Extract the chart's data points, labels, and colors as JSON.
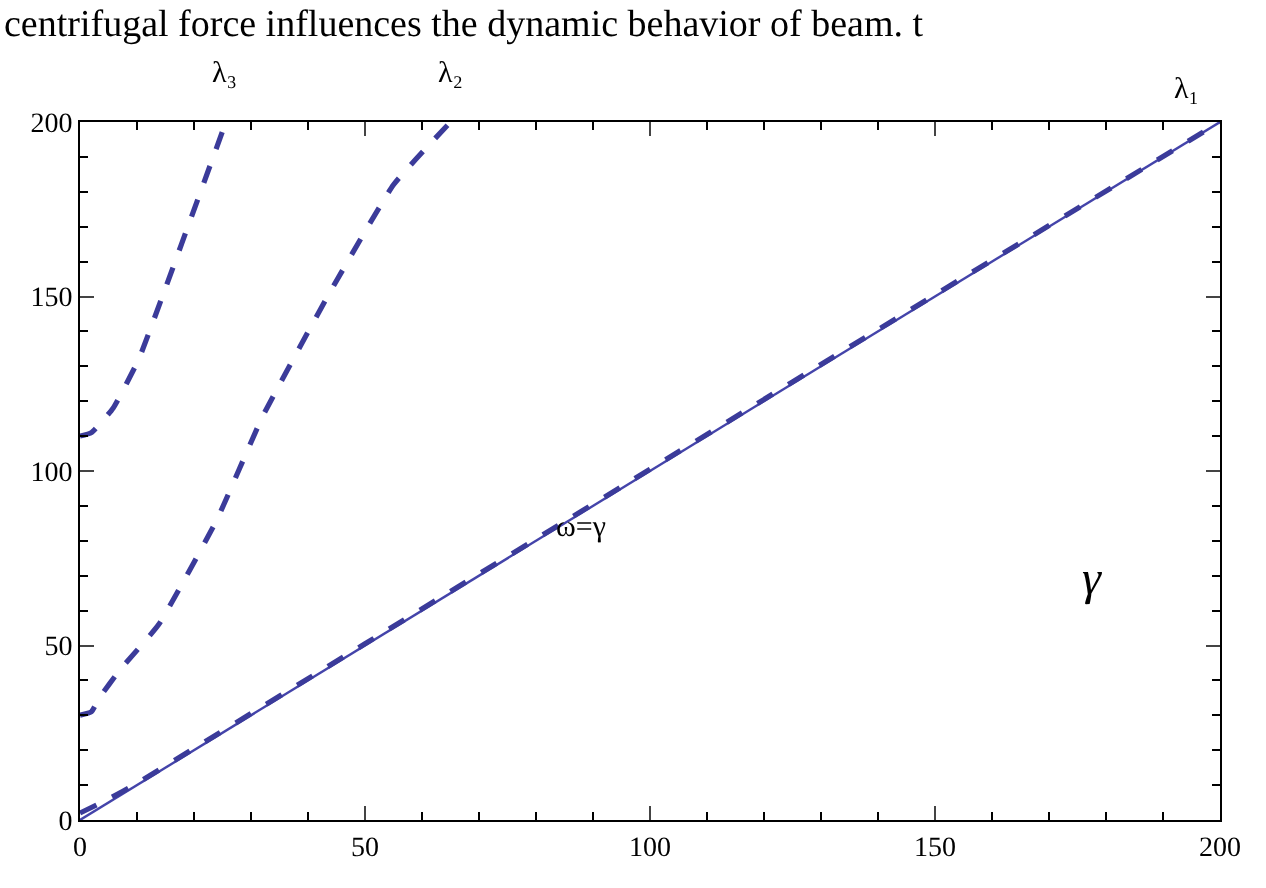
{
  "chart_data": {
    "type": "line",
    "xlabel": "γ",
    "xlim": [
      0,
      200
    ],
    "ylim": [
      0,
      200
    ],
    "xticks": [
      0,
      {
        "value": 10,
        "label": null
      },
      {
        "value": 20,
        "label": null
      },
      {
        "value": 30,
        "label": null
      },
      {
        "value": 40,
        "label": null
      },
      50,
      {
        "value": 60,
        "label": null
      },
      {
        "value": 70,
        "label": null
      },
      {
        "value": 80,
        "label": null
      },
      {
        "value": 90,
        "label": null
      },
      100,
      {
        "value": 110,
        "label": null
      },
      {
        "value": 120,
        "label": null
      },
      {
        "value": 130,
        "label": null
      },
      {
        "value": 140,
        "label": null
      },
      150,
      {
        "value": 160,
        "label": null
      },
      {
        "value": 170,
        "label": null
      },
      {
        "value": 180,
        "label": null
      },
      {
        "value": 190,
        "label": null
      },
      200
    ],
    "yticks": [
      0,
      {
        "value": 10,
        "label": null
      },
      {
        "value": 20,
        "label": null
      },
      {
        "value": 30,
        "label": null
      },
      {
        "value": 40,
        "label": null
      },
      50,
      {
        "value": 60,
        "label": null
      },
      {
        "value": 70,
        "label": null
      },
      {
        "value": 80,
        "label": null
      },
      {
        "value": 90,
        "label": null
      },
      100,
      {
        "value": 110,
        "label": null
      },
      {
        "value": 120,
        "label": null
      },
      {
        "value": 130,
        "label": null
      },
      {
        "value": 140,
        "label": null
      },
      150,
      {
        "value": 160,
        "label": null
      },
      {
        "value": 170,
        "label": null
      },
      {
        "value": 180,
        "label": null
      },
      {
        "value": 190,
        "label": null
      },
      200
    ],
    "marker": "none",
    "series": [
      {
        "name": "ω=γ",
        "color": "#4444aa",
        "line_style": "solid",
        "x": [
          0,
          200
        ],
        "values": [
          0,
          200
        ]
      },
      {
        "name": "λ₁",
        "color": "#3b3b9a",
        "line_style": "dashed",
        "x": [
          0,
          5,
          10,
          20,
          50,
          100,
          150,
          200
        ],
        "values": [
          2,
          6,
          10.5,
          20.5,
          50.5,
          100.5,
          150.5,
          200
        ]
      },
      {
        "name": "λ₂",
        "color": "#3b3b9a",
        "line_style": "dashed",
        "x": [
          0,
          2,
          3.4,
          7,
          13.8,
          24,
          32,
          43.6,
          55,
          65
        ],
        "values": [
          30,
          31,
          35,
          43,
          56,
          86,
          115.5,
          150.5,
          182,
          200
        ]
      },
      {
        "name": "λ₃",
        "color": "#3b3b9a",
        "line_style": "dashed",
        "x": [
          0,
          2,
          5.8,
          10.3,
          14.9,
          20.7,
          25.6
        ],
        "values": [
          110,
          111,
          118,
          132,
          152,
          178,
          200
        ]
      }
    ],
    "annotations": [
      "centrifugal force influences the dynamic behavior of beam. t"
    ]
  }
}
